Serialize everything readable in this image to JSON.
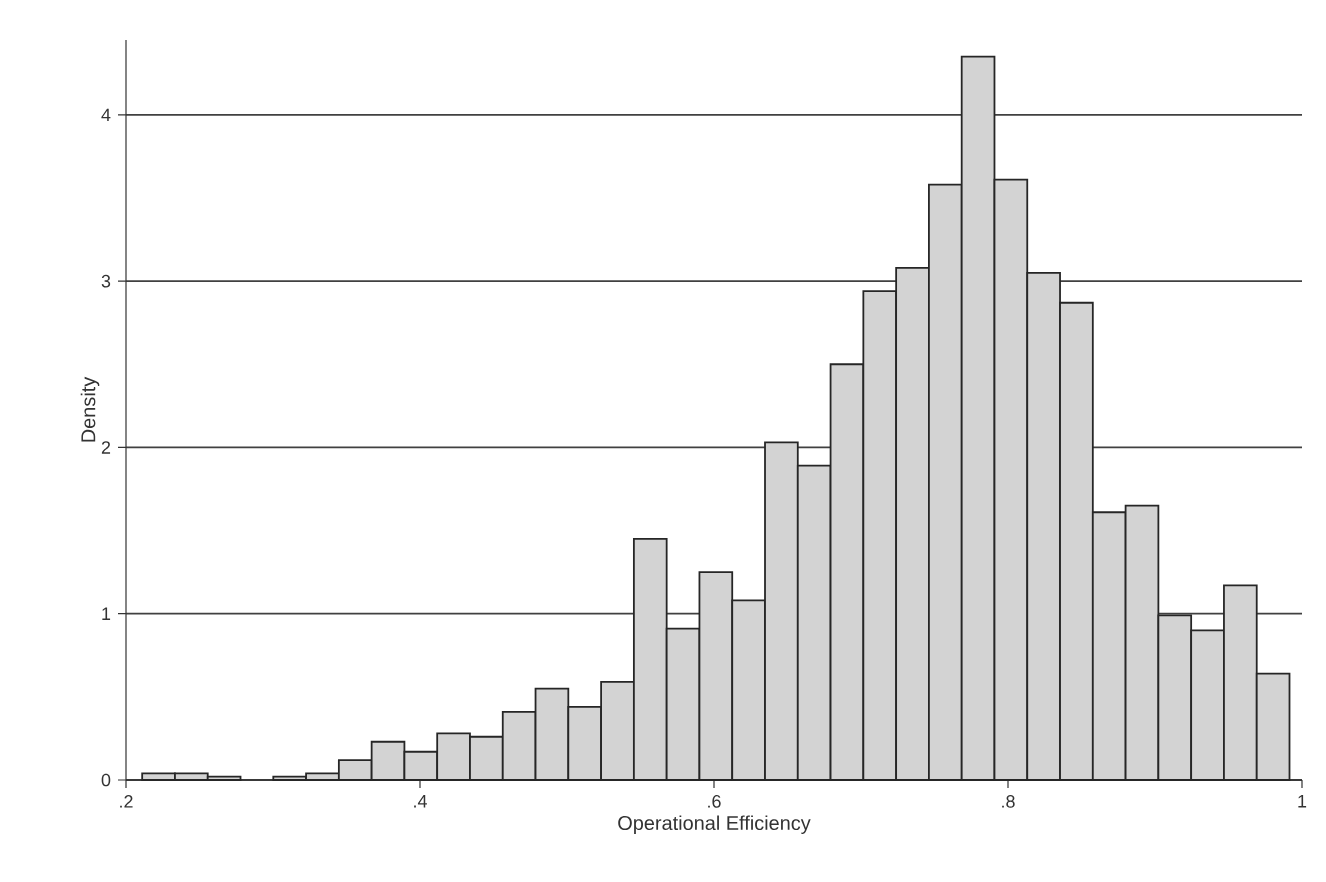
{
  "chart_data": {
    "type": "histogram",
    "xlabel": "Operational Efficiency",
    "ylabel": "Density",
    "color": "#d3d3d3",
    "bins": [
      0.211,
      0.2333,
      0.2556,
      0.2779,
      0.3002,
      0.3225,
      0.3448,
      0.3671,
      0.3894,
      0.4117,
      0.434,
      0.4563,
      0.4786,
      0.5009,
      0.5232,
      0.5455,
      0.5678,
      0.5901,
      0.6124,
      0.6347,
      0.657,
      0.6793,
      0.7016,
      0.7239,
      0.7462,
      0.7685,
      0.7908,
      0.8131,
      0.8354,
      0.8577,
      0.88,
      0.9023,
      0.9246,
      0.9469,
      0.9692,
      0.9915
    ],
    "values": [
      0.04,
      0.04,
      0.02,
      null,
      0.02,
      0.04,
      0.12,
      0.23,
      0.17,
      0.28,
      0.26,
      0.41,
      0.55,
      0.44,
      0.59,
      1.45,
      0.91,
      1.25,
      1.08,
      2.03,
      1.89,
      2.5,
      2.94,
      3.08,
      3.58,
      4.35,
      3.61,
      3.05,
      2.87,
      1.61,
      1.65,
      0.99,
      0.9,
      1.17,
      0.64
    ],
    "xlim": [
      0.2,
      1
    ],
    "ylim": [
      0,
      4.45
    ],
    "xticks": [
      {
        "value": 0.2,
        "label": ".2"
      },
      {
        "value": 0.4,
        "label": ".4"
      },
      {
        "value": 0.6,
        "label": ".6"
      },
      {
        "value": 0.8,
        "label": ".8"
      },
      1
    ],
    "yticks": [
      0,
      1,
      2,
      3,
      4
    ],
    "grid": "y"
  }
}
